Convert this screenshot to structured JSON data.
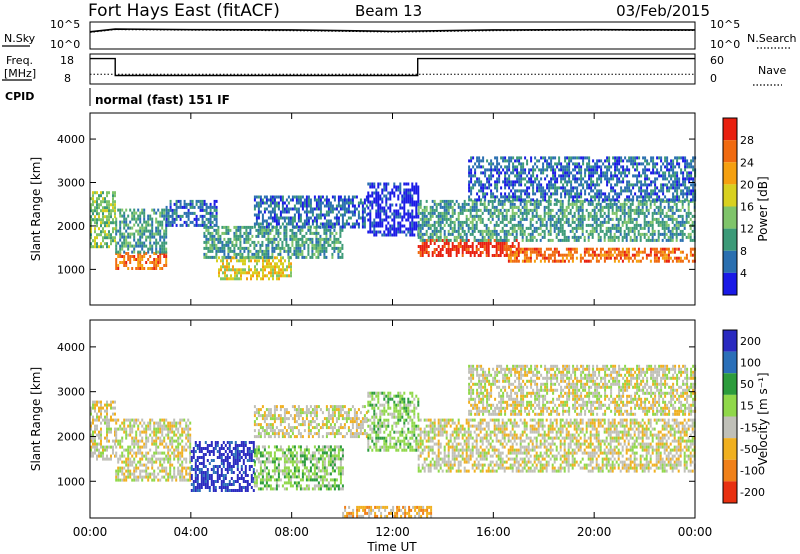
{
  "header": {
    "station": "Fort Hays East (fitACF)",
    "beam": "Beam 13",
    "date": "03/Feb/2015"
  },
  "top_panels": {
    "nsky_label": "N.Sky",
    "nsky_ticks": [
      "10^5",
      "10^0"
    ],
    "nsearch_label": "N.Search",
    "freq_label": "Freq.",
    "freq_unit": "[MHz]",
    "freq_ticks": [
      "18",
      "8"
    ],
    "nave_label": "Nave",
    "nave_ticks": [
      "60",
      "0"
    ],
    "cpid_label": "CPID",
    "cpid_text": "normal (fast) 151 IF"
  },
  "colors": {
    "power": [
      "#1a1ae6",
      "#2a6fb0",
      "#3c9a78",
      "#7fc46a",
      "#d8d020",
      "#f5a010",
      "#f06a10",
      "#e8200f"
    ],
    "velocity": [
      "#2a2ac0",
      "#2a6fb8",
      "#2c9c3c",
      "#90d84a",
      "#c0c0b8",
      "#f0b020",
      "#f08018",
      "#e83010"
    ]
  },
  "chart_data": [
    {
      "type": "line",
      "name": "N.Sky / N.Search",
      "x": [
        "00:00",
        "01:00",
        "04:00",
        "08:00",
        "12:00",
        "13:00",
        "16:00",
        "20:00",
        "24:00"
      ],
      "series": [
        {
          "name": "N.Sky",
          "values": [
            2000,
            8000,
            6000,
            5000,
            2500,
            3000,
            5000,
            6000,
            5000
          ]
        },
        {
          "name": "N.Search",
          "values": [
            1500,
            6000,
            4500,
            3500,
            1800,
            2000,
            3500,
            4500,
            3800
          ]
        }
      ],
      "ylim": [
        1,
        100000
      ],
      "scale": "log"
    },
    {
      "type": "line",
      "name": "Freq. / Nave",
      "x": [
        "00:00",
        "01:00",
        "01:00",
        "13:00",
        "13:00",
        "24:00"
      ],
      "series": [
        {
          "name": "Freq.",
          "values": [
            17,
            17,
            10.5,
            10.5,
            17,
            17
          ]
        },
        {
          "name": "Nave",
          "values": [
            18,
            18,
            18,
            18,
            18,
            18
          ]
        }
      ],
      "ylim": [
        8,
        18
      ],
      "y2lim": [
        0,
        60
      ]
    },
    {
      "type": "heatmap",
      "name": "power",
      "ylabel": "Slant Range [km]",
      "colorbar_label": "Power [dB]",
      "colorbar_ticks": [
        "28",
        "24",
        "20",
        "16",
        "12",
        "8",
        "4"
      ],
      "ylim": [
        180,
        4600
      ],
      "y_ticks": [
        "4000",
        "3000",
        "2000",
        "1000"
      ],
      "x_ticks": [
        "00:00",
        "04:00",
        "08:00",
        "12:00",
        "16:00",
        "20:00",
        "00:00"
      ],
      "xlim": [
        0,
        24
      ],
      "regions": [
        {
          "t": [
            0.0,
            1.0
          ],
          "r": [
            1500,
            2800
          ],
          "level": 3
        },
        {
          "t": [
            1.0,
            3.0
          ],
          "r": [
            1000,
            1400
          ],
          "level": 6
        },
        {
          "t": [
            1.0,
            3.0
          ],
          "r": [
            1400,
            2400
          ],
          "level": 2
        },
        {
          "t": [
            3.0,
            5.0
          ],
          "r": [
            2000,
            2600
          ],
          "level": 1
        },
        {
          "t": [
            5.0,
            8.0
          ],
          "r": [
            800,
            1300
          ],
          "level": 4
        },
        {
          "t": [
            4.5,
            10.0
          ],
          "r": [
            1300,
            2000
          ],
          "level": 2
        },
        {
          "t": [
            6.5,
            11.0
          ],
          "r": [
            2000,
            2700
          ],
          "level": 1
        },
        {
          "t": [
            11.0,
            13.0
          ],
          "r": [
            1800,
            3000
          ],
          "level": 0
        },
        {
          "t": [
            13.0,
            17.0
          ],
          "r": [
            1300,
            1700
          ],
          "level": 7
        },
        {
          "t": [
            13.0,
            24.0
          ],
          "r": [
            1700,
            2600
          ],
          "level": 2
        },
        {
          "t": [
            16.5,
            24.0
          ],
          "r": [
            1200,
            1500
          ],
          "level": 6
        },
        {
          "t": [
            15.0,
            24.0
          ],
          "r": [
            2600,
            3600
          ],
          "level": 1
        }
      ]
    },
    {
      "type": "heatmap",
      "name": "velocity",
      "ylabel": "Slant Range [km]",
      "colorbar_label": "Velocity [m s⁻¹]",
      "colorbar_ticks": [
        "200",
        "100",
        "50",
        "15",
        "-15",
        "-50",
        "-100",
        "-200"
      ],
      "ylim": [
        180,
        4600
      ],
      "y_ticks": [
        "4000",
        "3000",
        "2000",
        "1000"
      ],
      "x_ticks": [
        "00:00",
        "04:00",
        "08:00",
        "12:00",
        "16:00",
        "20:00",
        "00:00"
      ],
      "xlim": [
        0,
        24
      ],
      "xlabel": "Time UT",
      "regions": [
        {
          "t": [
            0.0,
            1.0
          ],
          "r": [
            1500,
            2800
          ],
          "level": 4
        },
        {
          "t": [
            1.0,
            4.0
          ],
          "r": [
            1000,
            2400
          ],
          "level": 4
        },
        {
          "t": [
            4.0,
            6.5
          ],
          "r": [
            800,
            1900
          ],
          "level": 0
        },
        {
          "t": [
            6.5,
            10.0
          ],
          "r": [
            800,
            1800
          ],
          "level": 3
        },
        {
          "t": [
            6.5,
            11.0
          ],
          "r": [
            2000,
            2700
          ],
          "level": 4
        },
        {
          "t": [
            11.0,
            13.0
          ],
          "r": [
            1700,
            3000
          ],
          "level": 3
        },
        {
          "t": [
            13.0,
            24.0
          ],
          "r": [
            1200,
            2400
          ],
          "level": 4
        },
        {
          "t": [
            15.0,
            24.0
          ],
          "r": [
            2500,
            3600
          ],
          "level": 4
        },
        {
          "t": [
            10.0,
            13.5
          ],
          "r": [
            200,
            450
          ],
          "level": 5
        }
      ]
    }
  ]
}
